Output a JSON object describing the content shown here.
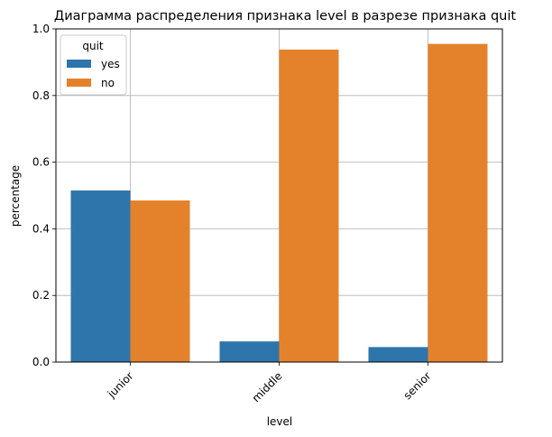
{
  "chart_data": {
    "type": "bar",
    "title": "Диаграмма распределения признака level в разрезе признака quit",
    "xlabel": "level",
    "ylabel": "percentage",
    "categories": [
      "junior",
      "middle",
      "senior"
    ],
    "series": [
      {
        "name": "yes",
        "values": [
          0.515,
          0.062,
          0.045
        ],
        "color": "#2e75ab"
      },
      {
        "name": "no",
        "values": [
          0.485,
          0.938,
          0.955
        ],
        "color": "#e4822b"
      }
    ],
    "ylim": [
      0,
      1.0
    ],
    "yticks": [
      "0.0",
      "0.2",
      "0.4",
      "0.6",
      "0.8",
      "1.0"
    ],
    "grid": true,
    "legend": {
      "title": "quit",
      "placement": "top-left"
    }
  }
}
